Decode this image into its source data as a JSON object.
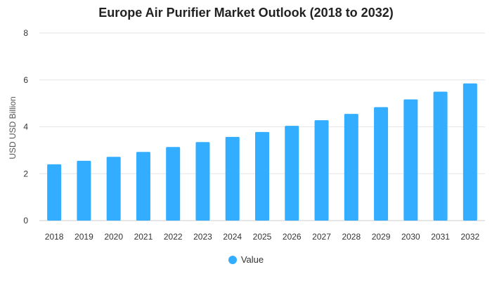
{
  "chart_data": {
    "type": "bar",
    "title": "Europe Air Purifier Market Outlook (2018 to 2032)",
    "xlabel": "",
    "ylabel": "USD USD Billion",
    "categories": [
      "2018",
      "2019",
      "2020",
      "2021",
      "2022",
      "2023",
      "2024",
      "2025",
      "2026",
      "2027",
      "2028",
      "2029",
      "2030",
      "2031",
      "2032"
    ],
    "series": [
      {
        "name": "Value",
        "values": [
          2.4,
          2.55,
          2.72,
          2.93,
          3.14,
          3.35,
          3.57,
          3.78,
          4.04,
          4.28,
          4.55,
          4.84,
          5.17,
          5.5,
          5.85
        ]
      }
    ],
    "ylim": [
      0,
      8
    ],
    "yticks": [
      0,
      2,
      4,
      6,
      8
    ],
    "grid": true,
    "legend_position": "bottom",
    "colors": {
      "bar": "#33adff",
      "grid": "#e6e6e6",
      "axis": "#cccccc",
      "text": "#333333"
    }
  }
}
